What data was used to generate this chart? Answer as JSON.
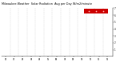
{
  "title": "Milwaukee Weather  Solar Radiation",
  "subtitle": "Avg per Day W/m2/minute",
  "ylim": [
    0,
    7
  ],
  "xlim": [
    -1,
    157
  ],
  "background_color": "#ffffff",
  "dot_color_red": "#ff0000",
  "dot_color_black": "#000000",
  "grid_color": "#bbbbbb",
  "legend_box_color": "#cc0000",
  "num_years": 13,
  "months_per_year": 12,
  "seed": 42,
  "yticks": [
    1,
    2,
    3,
    4,
    5,
    6,
    7
  ],
  "figsize": [
    1.6,
    0.87
  ],
  "dpi": 100
}
